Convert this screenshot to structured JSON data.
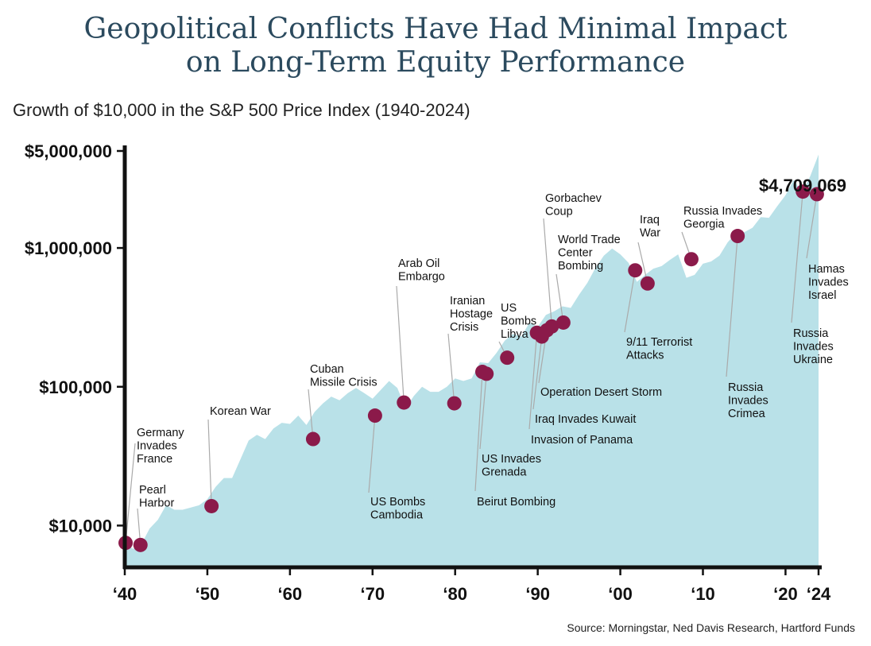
{
  "title_line1": "Geopolitical Conflicts Have Had Minimal Impact",
  "title_line2": "on Long-Term Equity Performance",
  "subtitle": "Growth of $10,000 in the S&P 500 Price Index (1940-2024)",
  "source": "Source: Morningstar, Ned Davis Research, Hartford Funds",
  "colors": {
    "area": "#b9e1e8",
    "marker": "#8b1a4a",
    "axis": "#111111",
    "title": "#2b4a5e",
    "leader": "#aaaaaa"
  },
  "chart_data": {
    "type": "area",
    "title": "Geopolitical Conflicts Have Had Minimal Impact on Long-Term Equity Performance",
    "subtitle": "Growth of $10,000 in the S&P 500 Price Index (1940-2024)",
    "xlabel": "",
    "ylabel": "",
    "y_scale": "log",
    "ylim": [
      5000,
      5000000
    ],
    "xlim": [
      1940,
      2024
    ],
    "y_ticks": [
      {
        "value": 10000,
        "label": "$10,000"
      },
      {
        "value": 100000,
        "label": "$100,000"
      },
      {
        "value": 1000000,
        "label": "$1,000,000"
      },
      {
        "value": 5000000,
        "label": "$5,000,000"
      }
    ],
    "x_ticks": [
      {
        "value": 1940,
        "label": "‘40"
      },
      {
        "value": 1950,
        "label": "‘50"
      },
      {
        "value": 1960,
        "label": "‘60"
      },
      {
        "value": 1970,
        "label": "‘70"
      },
      {
        "value": 1980,
        "label": "‘80"
      },
      {
        "value": 1990,
        "label": "‘90"
      },
      {
        "value": 2000,
        "label": "‘00"
      },
      {
        "value": 2010,
        "label": "‘10"
      },
      {
        "value": 2020,
        "label": "‘20"
      },
      {
        "value": 2024,
        "label": "‘24"
      }
    ],
    "x": [
      1940,
      1941,
      1942,
      1943,
      1944,
      1945,
      1946,
      1947,
      1948,
      1949,
      1950,
      1951,
      1952,
      1953,
      1954,
      1955,
      1956,
      1957,
      1958,
      1959,
      1960,
      1961,
      1962,
      1963,
      1964,
      1965,
      1966,
      1967,
      1968,
      1969,
      1970,
      1971,
      1972,
      1973,
      1974,
      1975,
      1976,
      1977,
      1978,
      1979,
      1980,
      1981,
      1982,
      1983,
      1984,
      1985,
      1986,
      1987,
      1988,
      1989,
      1990,
      1991,
      1992,
      1993,
      1994,
      1995,
      1996,
      1997,
      1998,
      1999,
      2000,
      2001,
      2002,
      2003,
      2004,
      2005,
      2006,
      2007,
      2008,
      2009,
      2010,
      2011,
      2012,
      2013,
      2014,
      2015,
      2016,
      2017,
      2018,
      2019,
      2020,
      2021,
      2022,
      2023,
      2024
    ],
    "values": [
      7500,
      6800,
      7300,
      9500,
      11000,
      14000,
      13000,
      13000,
      13500,
      14000,
      15500,
      19000,
      22000,
      22000,
      30000,
      41000,
      45000,
      42000,
      50000,
      55000,
      54000,
      62000,
      53000,
      66000,
      76000,
      85000,
      80000,
      90000,
      98000,
      90000,
      82000,
      95000,
      110000,
      98000,
      70000,
      86000,
      100000,
      92000,
      92000,
      100000,
      115000,
      110000,
      115000,
      150000,
      148000,
      175000,
      215000,
      240000,
      230000,
      290000,
      270000,
      330000,
      350000,
      380000,
      370000,
      460000,
      560000,
      720000,
      880000,
      990000,
      900000,
      780000,
      570000,
      640000,
      710000,
      740000,
      820000,
      900000,
      610000,
      640000,
      770000,
      800000,
      880000,
      1100000,
      1280000,
      1300000,
      1400000,
      1670000,
      1650000,
      2000000,
      2400000,
      3100000,
      2500000,
      3300000,
      4709069
    ],
    "final_value_label": "$4,709,069",
    "events": [
      {
        "year": 1940.1,
        "value": 7500,
        "label": "Germany\nInvades\nFrance"
      },
      {
        "year": 1941.9,
        "value": 7250,
        "label": "Pearl\nHarbor"
      },
      {
        "year": 1950.5,
        "value": 13800,
        "label": "Korean War"
      },
      {
        "year": 1962.8,
        "value": 42000,
        "label": "Cuban\nMissile Crisis"
      },
      {
        "year": 1970.3,
        "value": 62000,
        "label": "US Bombs\nCambodia"
      },
      {
        "year": 1973.8,
        "value": 77000,
        "label": "Arab Oil\nEmbargo"
      },
      {
        "year": 1979.9,
        "value": 76000,
        "label": "Iranian\nHostage\nCrisis"
      },
      {
        "year": 1983.3,
        "value": 128000,
        "label": "Beirut Bombing"
      },
      {
        "year": 1983.8,
        "value": 124000,
        "label": "US Invades\nGrenada"
      },
      {
        "year": 1986.3,
        "value": 162000,
        "label": "US\nBombs\nLibya"
      },
      {
        "year": 1989.9,
        "value": 245000,
        "label": "Invasion of Panama"
      },
      {
        "year": 1990.5,
        "value": 230000,
        "label": "Iraq Invades Kuwait"
      },
      {
        "year": 1991.1,
        "value": 255000,
        "label": "Operation Desert Storm"
      },
      {
        "year": 1991.7,
        "value": 272000,
        "label": "Gorbachev\nCoup"
      },
      {
        "year": 1993.1,
        "value": 290000,
        "label": "World Trade\nCenter\nBombing"
      },
      {
        "year": 2001.8,
        "value": 690000,
        "label": "9/11 Terrorist\nAttacks"
      },
      {
        "year": 2003.3,
        "value": 555000,
        "label": "Iraq\nWar"
      },
      {
        "year": 2008.6,
        "value": 830000,
        "label": "Russia Invades\nGeorgia"
      },
      {
        "year": 2014.2,
        "value": 1220000,
        "label": "Russia\nInvades\nCrimea"
      },
      {
        "year": 2022.1,
        "value": 2550000,
        "label": "Russia\nInvades\nUkraine"
      },
      {
        "year": 2023.8,
        "value": 2440000,
        "label": "Hamas\nInvades\nIsrael"
      }
    ]
  }
}
